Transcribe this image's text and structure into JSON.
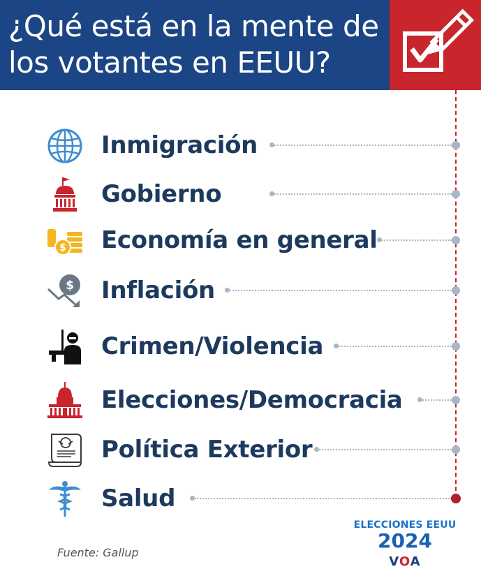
{
  "header": {
    "title_line1": "¿Qué está en la mente de",
    "title_line2": "los votantes en EEUU?",
    "badge_icon": "checkbox-pencil-icon",
    "colors": {
      "header_bg": "#1b4584",
      "badge_bg": "#c8252c",
      "label": "#1d3a5e"
    }
  },
  "items": [
    {
      "label": "Inmigración",
      "icon": "globe-icon"
    },
    {
      "label": "Gobierno",
      "icon": "capitol-icon"
    },
    {
      "label": "Economía en general",
      "icon": "money-icon"
    },
    {
      "label": "Inflación",
      "icon": "inflation-icon"
    },
    {
      "label": "Crimen/Violencia",
      "icon": "criminal-icon"
    },
    {
      "label": "Elecciones/Democracia",
      "icon": "government-building-icon"
    },
    {
      "label": "Política Exterior",
      "icon": "foreign-policy-document-icon"
    },
    {
      "label": "Salud",
      "icon": "caduceus-icon"
    }
  ],
  "footer": {
    "source": "Fuente: Gallup",
    "brand_line1": "ELECCIONES EEUU",
    "brand_line2": "2024",
    "logo_left": "V",
    "logo_mid": "O",
    "logo_right": "A"
  }
}
